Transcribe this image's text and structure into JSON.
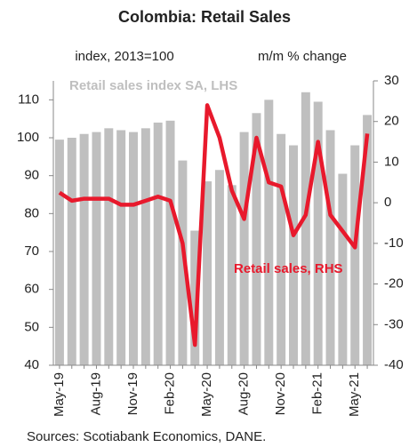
{
  "chart_data": {
    "type": "bar_line",
    "title": "Colombia: Retail Sales",
    "y_axis_label": "index, 2013=100",
    "y2_axis_label": "m/m % change",
    "source": "Sources: Scotiabank Economics, DANE.",
    "categories": [
      "May-19",
      null,
      null,
      "Aug-19",
      null,
      null,
      "Nov-19",
      null,
      null,
      "Feb-20",
      null,
      null,
      "May-20",
      null,
      null,
      "Aug-20",
      null,
      null,
      "Nov-20",
      null,
      null,
      "Feb-21",
      null,
      null,
      "May-21",
      null
    ],
    "series": [
      {
        "name": "Retail sales index SA, LHS",
        "color": "#bfbfbf",
        "type": "bar",
        "values": [
          99.5,
          100,
          101,
          101.5,
          102.5,
          102,
          101.5,
          102.5,
          104,
          104.5,
          94,
          75.5,
          88.5,
          91.5,
          87.5,
          101.5,
          106.5,
          110,
          101,
          98,
          112,
          109.5,
          102,
          90.5,
          98,
          106
        ]
      },
      {
        "name": "Retail sales, RHS",
        "color": "#e8192c",
        "type": "line",
        "axis": "y2",
        "values": [
          2.5,
          0.5,
          1,
          1,
          1,
          -0.5,
          -0.5,
          0.5,
          1.5,
          0.5,
          -10,
          -35,
          24,
          16,
          3,
          -4,
          16,
          5,
          4,
          -8,
          -3,
          15,
          -3,
          -7,
          -11,
          17
        ]
      }
    ],
    "ylim": [
      40,
      115
    ],
    "yticks": [
      40,
      50,
      60,
      70,
      80,
      90,
      100,
      110
    ],
    "y2lim": [
      -40,
      30
    ],
    "y2ticks": [
      -40,
      -30,
      -20,
      -10,
      0,
      10,
      20,
      30
    ]
  }
}
